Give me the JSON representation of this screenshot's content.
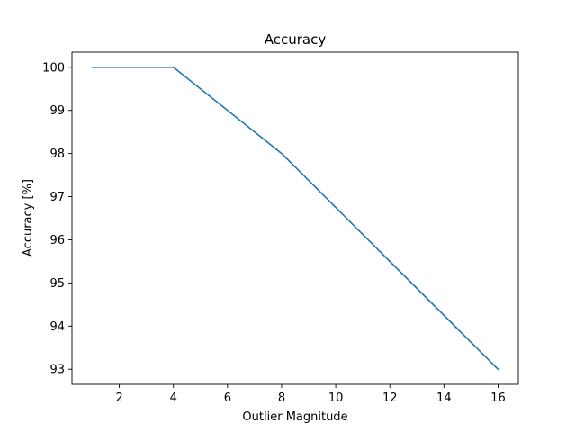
{
  "chart_data": {
    "type": "line",
    "title": "Accuracy",
    "xlabel": "Outlier Magnitude",
    "ylabel": "Accuracy [%]",
    "xlim": [
      0.25,
      16.75
    ],
    "ylim": [
      92.65,
      100.35
    ],
    "xticks": [
      2,
      4,
      6,
      8,
      10,
      12,
      14,
      16
    ],
    "yticks": [
      93,
      94,
      95,
      96,
      97,
      98,
      99,
      100
    ],
    "grid": false,
    "color": "#1f77b4",
    "series": [
      {
        "x": [
          1,
          2,
          4,
          8,
          16
        ],
        "values": [
          100,
          100,
          100,
          98,
          93
        ]
      }
    ]
  }
}
